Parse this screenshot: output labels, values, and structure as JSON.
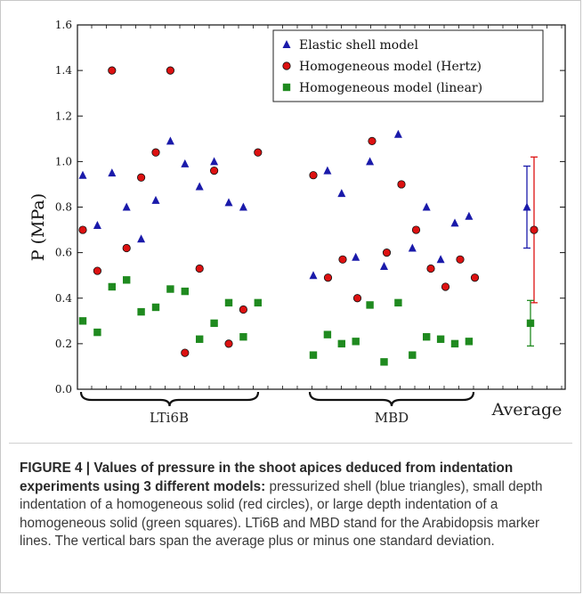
{
  "chart_data": {
    "type": "scatter",
    "xlabel": "",
    "ylabel": "P (MPa)",
    "ylim": [
      0.0,
      1.6
    ],
    "yticks": [
      "0.0",
      "0.2",
      "0.4",
      "0.6",
      "0.8",
      "1.0",
      "1.2",
      "1.4",
      "1.6"
    ],
    "grid": false,
    "legend_position": "top-right",
    "groups": [
      "LTi6B",
      "MBD",
      "Average"
    ],
    "series": [
      {
        "name": "Elastic shell model",
        "marker": "triangle",
        "color": "#1a1aaa",
        "LTi6B": [
          0.94,
          0.72,
          0.95,
          0.8,
          0.66,
          0.83,
          1.09,
          0.99,
          0.89,
          1.0,
          0.82,
          0.8
        ],
        "MBD": [
          0.5,
          0.96,
          0.86,
          0.58,
          1.0,
          0.54,
          1.12,
          0.62,
          0.8,
          0.57,
          0.73,
          0.76
        ],
        "average": 0.8,
        "std": 0.18
      },
      {
        "name": "Homogeneous model (Hertz)",
        "marker": "circle",
        "color": "#dd1111",
        "LTi6B": [
          0.7,
          0.52,
          1.4,
          0.62,
          0.93,
          1.04,
          1.4,
          0.16,
          0.53,
          0.96,
          0.2,
          0.35,
          1.04
        ],
        "MBD": [
          0.94,
          0.49,
          0.57,
          0.4,
          1.09,
          0.6,
          0.9,
          0.7,
          0.53,
          0.45,
          0.57,
          0.49
        ],
        "average": 0.7,
        "std": 0.32
      },
      {
        "name": "Homogeneous model (linear)",
        "marker": "square",
        "color": "#1f8a1f",
        "LTi6B": [
          0.3,
          0.25,
          0.45,
          0.48,
          0.34,
          0.36,
          0.44,
          0.43,
          0.22,
          0.29,
          0.38,
          0.23,
          0.38
        ],
        "MBD": [
          0.15,
          0.24,
          0.2,
          0.21,
          0.37,
          0.12,
          0.38,
          0.15,
          0.23,
          0.22,
          0.2,
          0.21
        ],
        "average": 0.29,
        "std": 0.1
      }
    ]
  },
  "caption": {
    "bold": "FIGURE 4 | Values of pressure in the shoot apices deduced from indentation experiments using 3 different models:",
    "text": " pressurized shell (blue triangles), small depth indentation of a homogeneous solid (red circles), or large depth indentation of a homogeneous solid (green squares). LTi6B and MBD stand for the Arabidopsis marker lines. The vertical bars span the average plus or minus one standard deviation."
  }
}
